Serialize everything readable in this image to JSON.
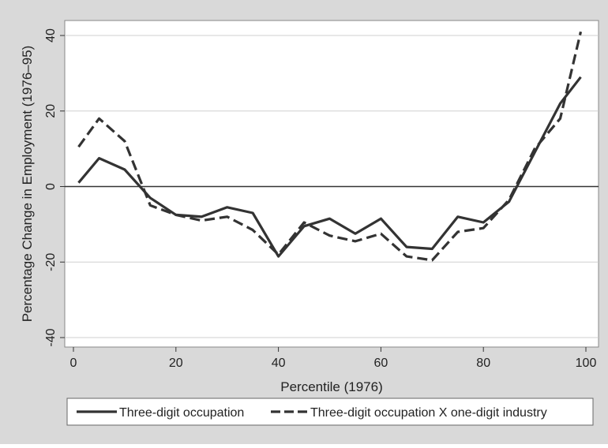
{
  "chart_data": {
    "type": "line",
    "title": "",
    "xlabel": "Percentile (1976)",
    "ylabel": "Percentage Change in Employment (1976–95)",
    "xlim": [
      0,
      100
    ],
    "ylim": [
      -40,
      40
    ],
    "x_ticks": [
      0,
      20,
      40,
      60,
      80,
      100
    ],
    "y_ticks": [
      -40,
      -20,
      0,
      20,
      40
    ],
    "grid": "horizontal",
    "legend_position": "bottom",
    "series": [
      {
        "name": "Three-digit occupation",
        "style": "solid",
        "color": "#333333",
        "x": [
          1,
          5,
          10,
          15,
          20,
          25,
          30,
          35,
          40,
          45,
          50,
          55,
          60,
          65,
          70,
          75,
          80,
          85,
          90,
          95,
          99
        ],
        "y": [
          1,
          7.5,
          4.5,
          -3,
          -7.5,
          -8,
          -5.5,
          -7,
          -18.5,
          -10.5,
          -8.5,
          -12.5,
          -8.5,
          -16,
          -16.5,
          -8,
          -9.5,
          -4,
          9,
          22,
          29
        ]
      },
      {
        "name": "Three-digit occupation X one-digit industry",
        "style": "dashed",
        "color": "#333333",
        "x": [
          1,
          5,
          10,
          15,
          20,
          25,
          30,
          35,
          40,
          45,
          50,
          55,
          60,
          65,
          70,
          75,
          80,
          85,
          90,
          95,
          99
        ],
        "y": [
          10.5,
          18,
          12,
          -5,
          -7.5,
          -9,
          -8,
          -11.5,
          -18,
          -9.5,
          -13,
          -14.5,
          -12.5,
          -18.5,
          -19.5,
          -12,
          -11,
          -3.5,
          10,
          18,
          41
        ]
      }
    ]
  }
}
